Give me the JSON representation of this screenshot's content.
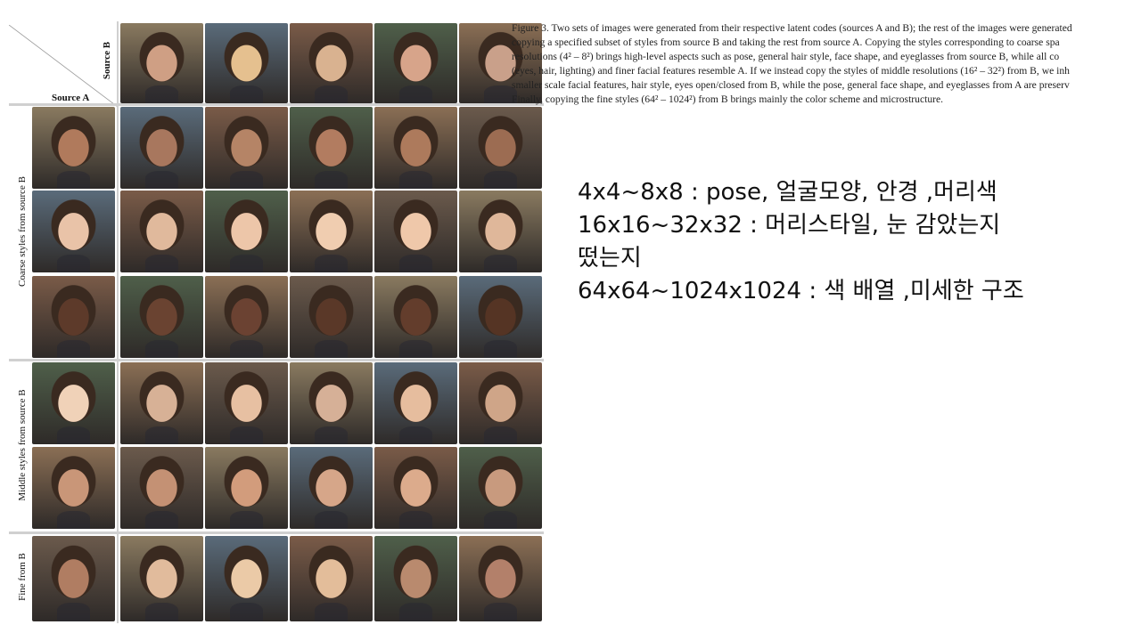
{
  "figure": {
    "source_b_label": "Source B",
    "source_a_label": "Source A",
    "group_labels": {
      "coarse": "Coarse styles from source B",
      "middle": "Middle styles from source B",
      "fine": "Fine from B"
    },
    "grid": {
      "columns": 6,
      "rows": [
        "source-b",
        "coarse-1",
        "coarse-2",
        "coarse-3",
        "middle-1",
        "middle-2",
        "fine-1"
      ],
      "tones": [
        [
          "#cf9f84",
          "#e5c08f",
          "#d9b290",
          "#d7a48a",
          "#c9a08a"
        ],
        [
          "#b07a5c",
          "#a8775e",
          "#b58466",
          "#b27c60",
          "#ad7a5c",
          "#9c6c52"
        ],
        [
          "#e9c3a8",
          "#e0b99c",
          "#edc6a9",
          "#f0cdb0",
          "#efc8aa",
          "#dfb79a"
        ],
        [
          "#5d3a2a",
          "#6a4331",
          "#6b4232",
          "#5a3828",
          "#633d2c",
          "#553424"
        ],
        [
          "#f0d2b8",
          "#d7b196",
          "#e7c0a2",
          "#d6b097",
          "#e6bd9e",
          "#cfa588"
        ],
        [
          "#c99678",
          "#c49174",
          "#d29c7c",
          "#d6a689",
          "#dcab8c",
          "#c89a7e"
        ],
        [
          "#b07d62",
          "#e1bb9c",
          "#ebcaa7",
          "#e3bd9a",
          "#b98a6e",
          "#b3806a"
        ]
      ]
    }
  },
  "caption": {
    "lines": [
      "Figure 3. Two sets of images were generated from their respective latent codes (sources A and B); the rest of the images were generated",
      "copying a specified subset of styles from source B and taking the rest from source A. Copying the styles corresponding to coarse spa",
      "resolutions (4² – 8²) brings high-level aspects such as pose, general hair style, face shape, and eyeglasses from source B, while all co",
      "(eyes, hair, lighting) and finer facial features resemble A. If we instead copy the styles of middle resolutions (16² – 32²) from B, we inh",
      "smaller scale facial features, hair style, eyes open/closed from B, while the pose, general face shape, and eyeglasses from A are preserv",
      "Finally, copying the fine styles (64² – 1024²) from B brings mainly the color scheme and microstructure."
    ]
  },
  "notes": {
    "lines": [
      "4x4~8x8 : pose, 얼굴모양, 안경 ,머리색",
      "16x16~32x32 : 머리스타일, 눈 감았는지",
      "떴는지",
      "64x64~1024x1024 : 색 배열 ,미세한 구조"
    ]
  }
}
